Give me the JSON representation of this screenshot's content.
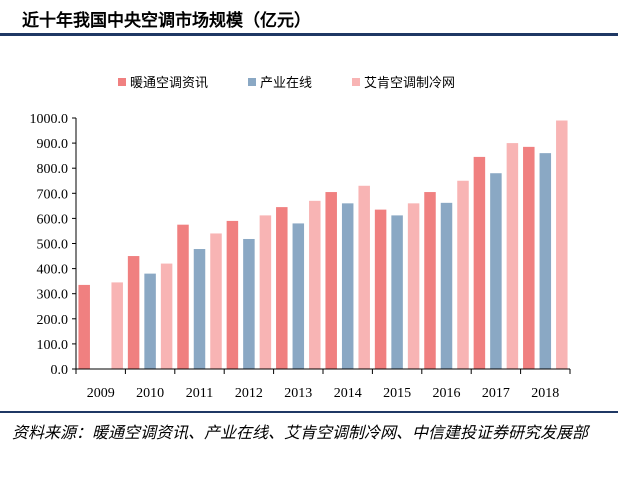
{
  "title": "近十年我国中央空调市场规模（亿元）",
  "source_note": "资料来源：暖通空调资讯、产业在线、艾肯空调制冷网、中信建投证券研究发展部",
  "chart_data": {
    "type": "bar",
    "title": "近十年我国中央空调市场规模（亿元）",
    "categories": [
      "2009",
      "2010",
      "2011",
      "2012",
      "2013",
      "2014",
      "2015",
      "2016",
      "2017",
      "2018"
    ],
    "series": [
      {
        "name": "暖通空调资讯",
        "color": "#f08080",
        "values": [
          335,
          450,
          575,
          590,
          645,
          705,
          635,
          705,
          845,
          885
        ]
      },
      {
        "name": "产业在线",
        "color": "#8aa8c4",
        "values": [
          null,
          380,
          478,
          518,
          580,
          660,
          612,
          662,
          780,
          860
        ]
      },
      {
        "name": "艾肯空调制冷网",
        "color": "#f8b4b4",
        "values": [
          345,
          420,
          540,
          612,
          670,
          730,
          660,
          750,
          900,
          990
        ]
      }
    ],
    "ylim": [
      0,
      1000
    ],
    "yticks": [
      "0.0",
      "100.0",
      "200.0",
      "300.0",
      "400.0",
      "500.0",
      "600.0",
      "700.0",
      "800.0",
      "900.0",
      "1000.0"
    ],
    "xlabel": "",
    "ylabel": "",
    "grid": false,
    "legend_position": "top"
  }
}
